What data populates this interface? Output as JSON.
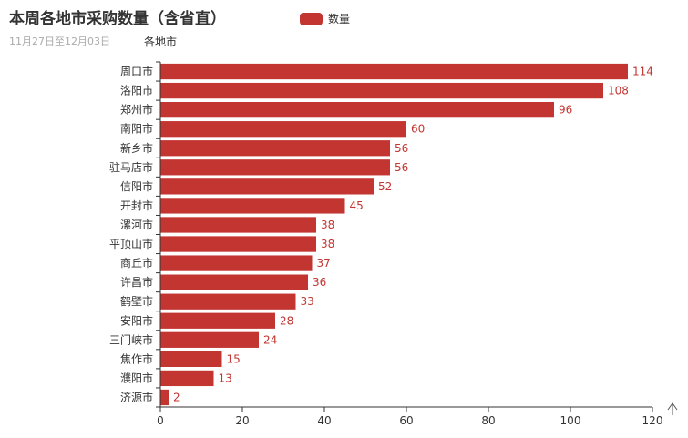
{
  "chart_data": {
    "type": "bar",
    "orientation": "horizontal",
    "title": "本周各地市采购数量（含省直）",
    "subtitle": "11月27日至12月03日",
    "ylabel": "各地市",
    "xlabel": "",
    "legend": [
      "数量"
    ],
    "legend_position": "top-center",
    "color": "#c23531",
    "xlim": [
      0,
      120
    ],
    "xticks": [
      0,
      20,
      40,
      60,
      80,
      100,
      120
    ],
    "categories": [
      "周口市",
      "洛阳市",
      "郑州市",
      "南阳市",
      "新乡市",
      "驻马店市",
      "信阳市",
      "开封市",
      "漯河市",
      "平顶山市",
      "商丘市",
      "许昌市",
      "鹤壁市",
      "安阳市",
      "三门峡市",
      "焦作市",
      "濮阳市",
      "济源市"
    ],
    "series": [
      {
        "name": "数量",
        "values": [
          114,
          108,
          96,
          60,
          56,
          56,
          52,
          45,
          38,
          38,
          37,
          36,
          33,
          28,
          24,
          15,
          13,
          2
        ]
      }
    ]
  }
}
